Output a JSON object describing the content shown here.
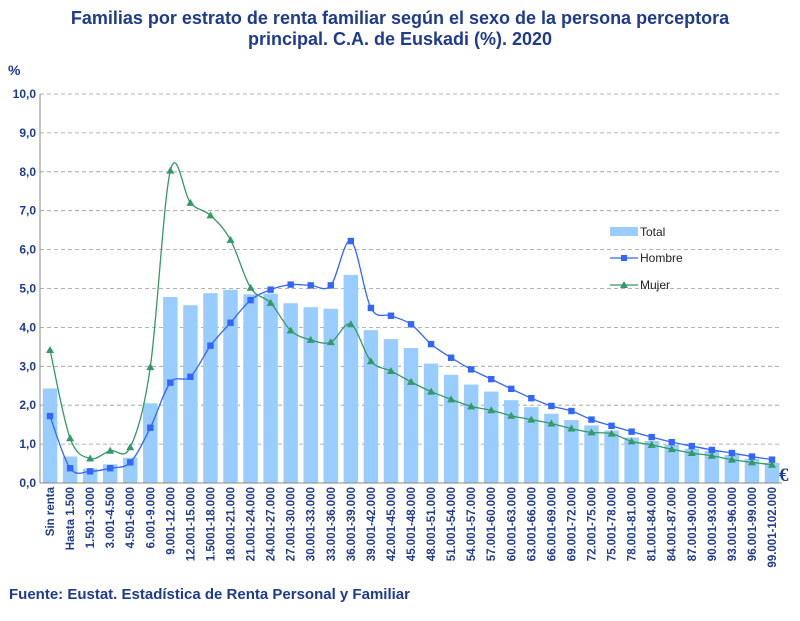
{
  "chart_data": {
    "type": "bar",
    "title_lines": [
      "Familias por estrato de renta familiar según el sexo de la persona perceptora",
      "principal. C.A. de Euskadi (%). 2020"
    ],
    "ylabel": "%",
    "xunit": "€",
    "ylim": [
      0,
      10
    ],
    "yticks": [
      "0,0",
      "1,0",
      "2,0",
      "3,0",
      "4,0",
      "5,0",
      "6,0",
      "7,0",
      "8,0",
      "9,0",
      "10,0"
    ],
    "grid": true,
    "legend_position": "right",
    "categories": [
      "Sin renta",
      "Hasta 1.500",
      "1.501-3.000",
      "3.001-4.500",
      "4.501-6.000",
      "6.001-9.000",
      "9.001-12.000",
      "12.001-15.000",
      "1.5001-18.000",
      "18.001-21.000",
      "21.001-24.000",
      "24.001-27.000",
      "27.001-30.000",
      "30.001-33.000",
      "33.001-36.000",
      "36.001-39.000",
      "39.001-42.000",
      "42.001-45.000",
      "45.001-48.000",
      "48.001-51.000",
      "51.001-54.000",
      "54.001-57.000",
      "57.001-60.000",
      "60.001-63.000",
      "63.001-66.000",
      "66.001-69.000",
      "69.001-72.000",
      "72.001-75.000",
      "75.001-78.000",
      "78.001-81.000",
      "81.001-84.000",
      "84.001-87.000",
      "87.001-90.000",
      "90.001-93.000",
      "93.001-96.000",
      "96.001-99.000",
      "99.001-102.000"
    ],
    "series": [
      {
        "name": "Total",
        "kind": "bar",
        "color": "#99ccff",
        "values": [
          2.43,
          0.68,
          0.37,
          0.48,
          0.65,
          2.05,
          4.78,
          4.57,
          4.88,
          4.97,
          4.85,
          4.87,
          4.62,
          4.52,
          4.48,
          5.35,
          3.93,
          3.7,
          3.47,
          3.07,
          2.78,
          2.53,
          2.35,
          2.13,
          1.95,
          1.78,
          1.62,
          1.48,
          1.35,
          1.17,
          1.08,
          0.98,
          0.88,
          0.82,
          0.72,
          0.62,
          0.52
        ]
      },
      {
        "name": "Hombre",
        "kind": "line",
        "color": "#3366ff",
        "marker": "square",
        "values": [
          1.72,
          0.38,
          0.3,
          0.38,
          0.53,
          1.42,
          2.58,
          2.73,
          3.53,
          4.12,
          4.7,
          4.97,
          5.1,
          5.08,
          5.08,
          6.22,
          4.5,
          4.3,
          4.08,
          3.57,
          3.22,
          2.92,
          2.67,
          2.42,
          2.18,
          1.98,
          1.85,
          1.63,
          1.47,
          1.32,
          1.18,
          1.05,
          0.95,
          0.85,
          0.77,
          0.68,
          0.6
        ]
      },
      {
        "name": "Mujer",
        "kind": "line",
        "color": "#339966",
        "marker": "triangle",
        "values": [
          3.42,
          1.15,
          0.63,
          0.83,
          0.92,
          2.98,
          8.03,
          7.2,
          6.88,
          6.25,
          5.02,
          4.63,
          3.92,
          3.68,
          3.62,
          4.08,
          3.13,
          2.88,
          2.6,
          2.35,
          2.15,
          1.97,
          1.87,
          1.73,
          1.63,
          1.53,
          1.4,
          1.3,
          1.27,
          1.07,
          0.98,
          0.87,
          0.77,
          0.7,
          0.6,
          0.53,
          0.47
        ]
      }
    ]
  },
  "footer": {
    "source": "Fuente: Eustat. Estadística de Renta Personal y Familiar"
  }
}
